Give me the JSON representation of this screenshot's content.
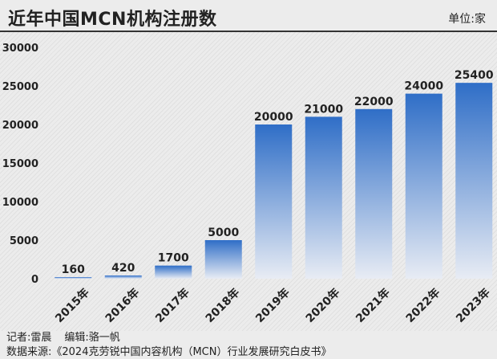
{
  "header": {
    "title": "近年中国MCN机构注册数",
    "unit": "单位:家"
  },
  "footer": {
    "reporter": "记者:雷晨",
    "editor": "编辑:骆一帆",
    "source": "数据来源:《2024克劳锐中国内容机构（MCN）行业发展研究白皮书》"
  },
  "colors": {
    "bar_top": "#2f6ec7",
    "bar_bottom": "#e8ecf4",
    "text": "#222222"
  },
  "chart_data": {
    "type": "bar",
    "title": "近年中国MCN机构注册数",
    "unit": "单位:家",
    "categories": [
      "2015年",
      "2016年",
      "2017年",
      "2018年",
      "2019年",
      "2020年",
      "2021年",
      "2022年",
      "2023年"
    ],
    "values": [
      160,
      420,
      1700,
      5000,
      20000,
      21000,
      22000,
      24000,
      25400
    ],
    "yticks": [
      0,
      5000,
      10000,
      15000,
      20000,
      25000,
      30000
    ],
    "ylim": [
      0,
      30000
    ],
    "grid": false,
    "legend": "none"
  }
}
